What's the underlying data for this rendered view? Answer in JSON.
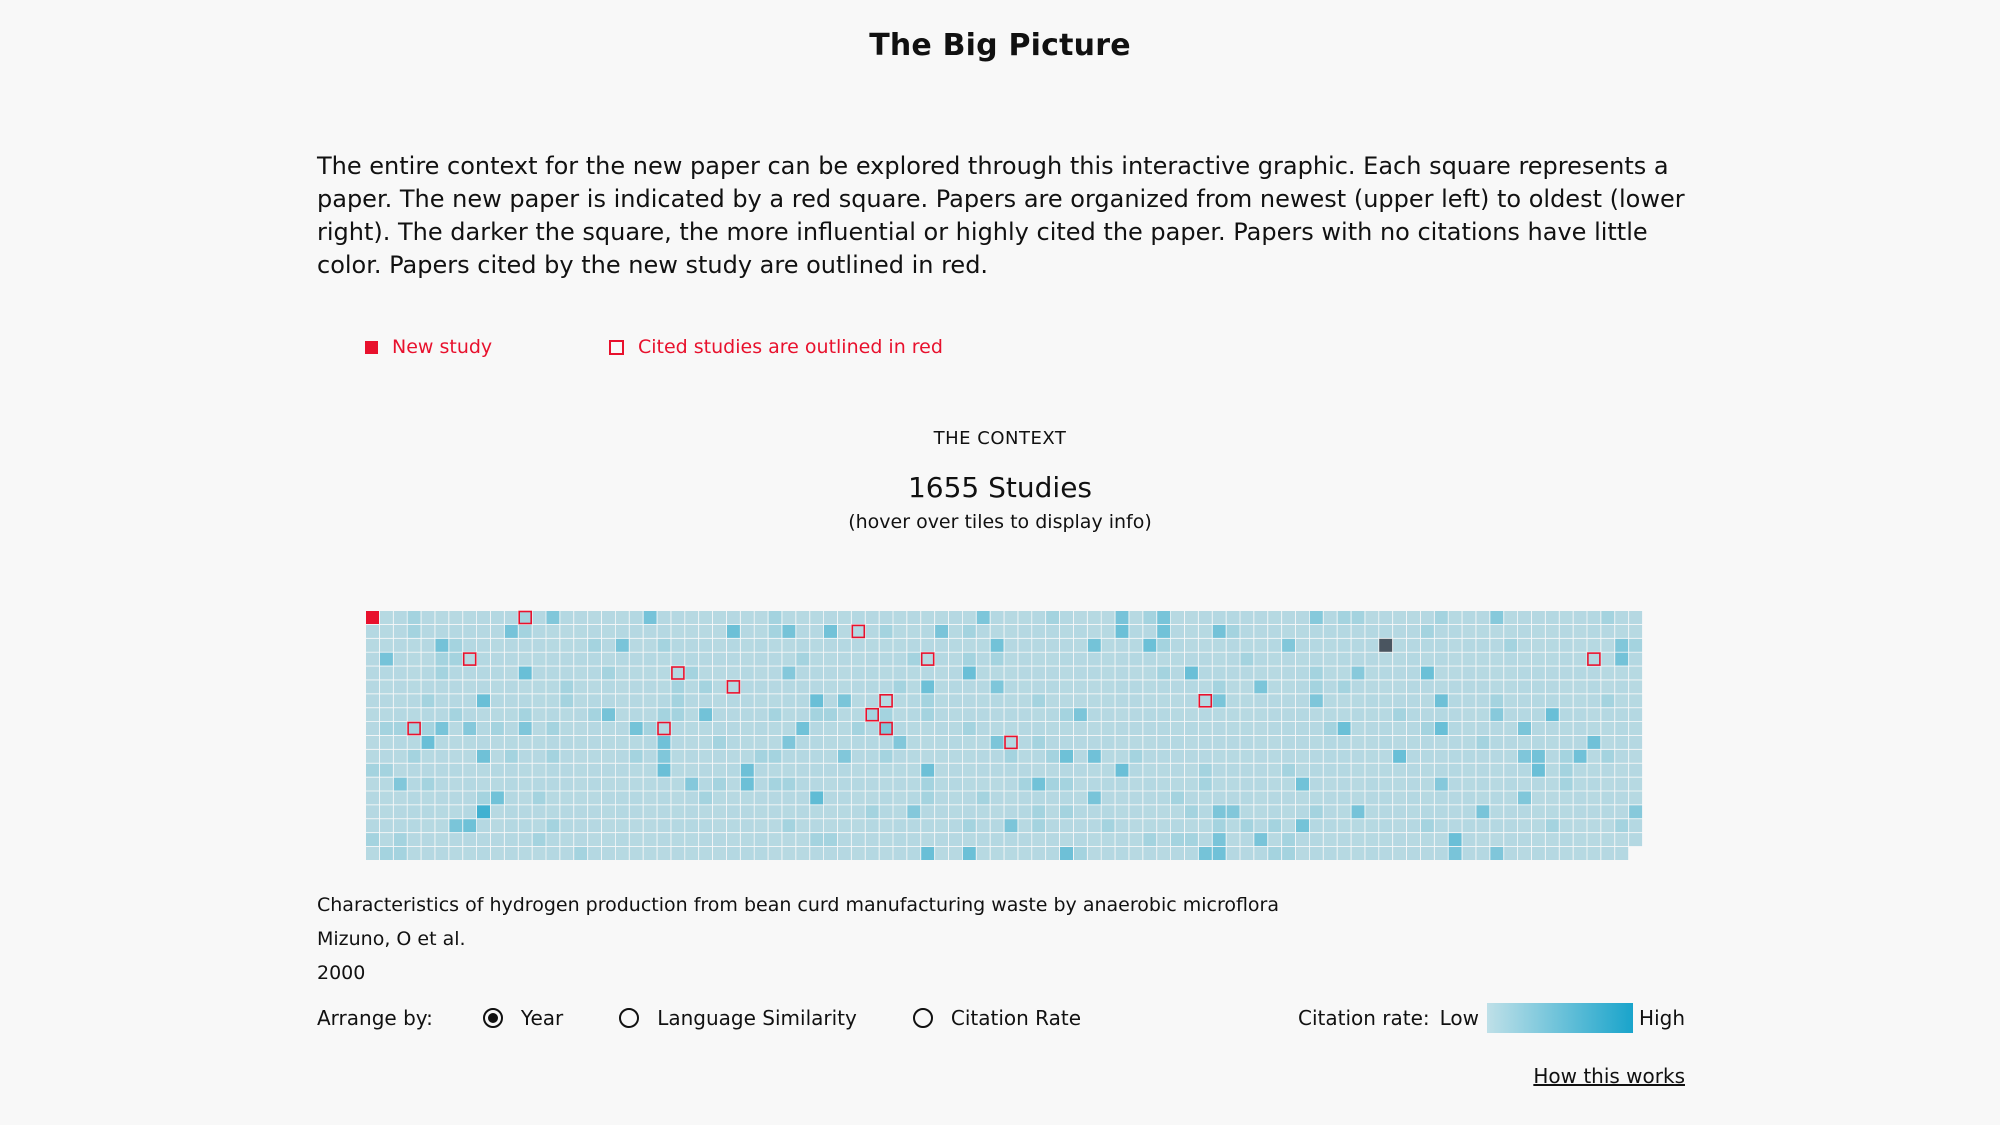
{
  "title": "The Big Picture",
  "intro": "The entire context for the new paper can be explored through this interactive graphic. Each square represents a paper. The new paper is indicated by a red square. Papers are organized from newest (upper left) to oldest (lower right). The darker the square, the more influential or highly cited the paper. Papers with no citations have little color. Papers cited by the new study are outlined in red.",
  "legend": {
    "new_study": "New study",
    "cited": "Cited studies are outlined in red",
    "color": "#e8112d"
  },
  "context": {
    "label": "THE CONTEXT",
    "count": "1655 Studies",
    "hint": "(hover over tiles to display info)"
  },
  "grid": {
    "total_tiles": 1655,
    "base_color": "#b7d9e2",
    "accent_color": "#19a4cb",
    "new_study_color": "#e8112d",
    "dark_tile_color": "#4a5560"
  },
  "selected_paper": {
    "title": "Characteristics of hydrogen production from bean curd manufacturing waste by anaerobic microflora",
    "authors": "Mizuno, O et al.",
    "year": "2000"
  },
  "controls": {
    "arrange_label": "Arrange by:",
    "options": [
      "Year",
      "Language Similarity",
      "Citation Rate"
    ],
    "selected": "Year",
    "rate_label": "Citation rate:",
    "rate_low": "Low",
    "rate_high": "High",
    "how_link": "How this works"
  }
}
